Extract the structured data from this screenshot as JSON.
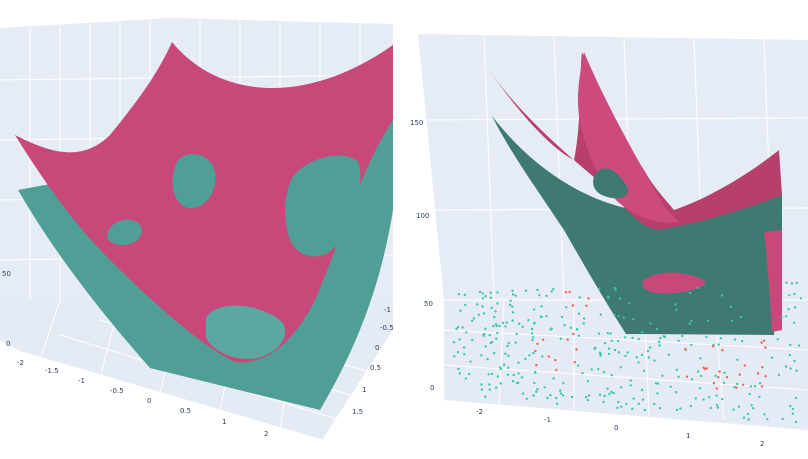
{
  "chart_data": [
    {
      "type": "surface",
      "view": "3d",
      "grid": true,
      "series": [
        {
          "kind": "surface",
          "color": "#c9487a"
        },
        {
          "kind": "surface",
          "color": "#4f9f96"
        }
      ],
      "axes": {
        "x": {
          "ticks": [
            "-2",
            "-1.5",
            "-1",
            "-0.5",
            "0",
            "0.5",
            "1",
            "2"
          ]
        },
        "y": {
          "ticks": [
            "1.5",
            "1",
            "0.5",
            "0",
            "-0.5",
            "-1"
          ]
        },
        "z": {
          "ticks": [
            "0",
            "50"
          ]
        }
      }
    },
    {
      "type": "surface",
      "view": "3d",
      "grid": true,
      "series": [
        {
          "kind": "surface",
          "color": "#b63f6c"
        },
        {
          "kind": "surface",
          "color": "#3f7a72"
        },
        {
          "kind": "scatter3d",
          "color": "#36c8a8"
        },
        {
          "kind": "scatter3d",
          "color": "#f0624d"
        }
      ],
      "axes": {
        "x": {
          "ticks": [
            "-2",
            "-1",
            "0",
            "1",
            "2"
          ]
        },
        "z": {
          "ticks": [
            "0",
            "50",
            "100",
            "150"
          ]
        }
      }
    }
  ]
}
